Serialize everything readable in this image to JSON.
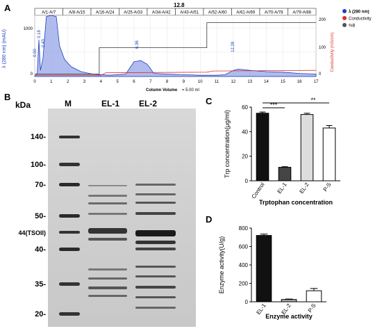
{
  "panel_letters": {
    "a": "A",
    "b": "B",
    "c": "C",
    "d": "D"
  },
  "panel_a": {
    "header_value": "12.8",
    "fractions": [
      "A/1-A/7",
      "A/8-A/15",
      "A/16-A/24",
      "A/25-A/33",
      "A/34-A/42",
      "A/43-A/51",
      "A/52-A/60",
      "A/61-A/69",
      "A/70-A/78",
      "A/79-A/86"
    ],
    "y_left_label": "λ (280 nm) (mAU)",
    "y_left_ticks": [
      "1000",
      "0"
    ],
    "y_right_label": "Conductivity (mS/cm)",
    "y_right_ticks": [
      "200",
      "100",
      "0"
    ],
    "x_ticks": [
      "0",
      "1",
      "2",
      "3",
      "4",
      "5",
      "6",
      "7",
      "8",
      "9",
      "10",
      "11",
      "12",
      "13",
      "14",
      "15",
      "16",
      "17"
    ],
    "x_label": "Column Volume",
    "x_note": "= 5.00 ml",
    "peak_labels": [
      "0.00",
      "0.18",
      "0.43",
      "6.36",
      "12.28"
    ],
    "legend": [
      {
        "name": "λ (280 nm)",
        "color": "#1f3fbf"
      },
      {
        "name": "Conductivity",
        "color": "#d93030"
      },
      {
        "name": "%B",
        "color": "#555555"
      }
    ]
  },
  "panel_b": {
    "kda_label": "kDa",
    "lane_labels": [
      "M",
      "EL-1",
      "EL-2"
    ],
    "markers": [
      "140-",
      "100-",
      "70-",
      "50-",
      "44(TSOII)",
      "40-",
      "35-",
      "20-"
    ]
  },
  "chart_data": [
    {
      "type": "bar",
      "title": "",
      "xlabel": "Trptophan concentration",
      "ylabel": "Trp concentration(μg/ml)",
      "ylim": [
        0,
        60
      ],
      "yticks": [
        "0",
        "20",
        "40",
        "60"
      ],
      "categories": [
        "Control",
        "EL-1",
        "EL-2",
        "P-S"
      ],
      "values": [
        55,
        11,
        54,
        43
      ],
      "errors": [
        1,
        0.5,
        1,
        2
      ],
      "colors": [
        "#111111",
        "#444444",
        "#dddddd",
        "#ffffff"
      ],
      "significance": [
        "***",
        "**"
      ]
    },
    {
      "type": "bar",
      "title": "",
      "xlabel": "Enzyme activity",
      "ylabel": "Enzyme activity(U/g)",
      "ylim": [
        0,
        800
      ],
      "yticks": [
        "0",
        "200",
        "400",
        "600",
        "800"
      ],
      "categories": [
        "EL-1",
        "EL-2",
        "P-S"
      ],
      "values": [
        720,
        25,
        120
      ],
      "errors": [
        15,
        5,
        25
      ],
      "colors": [
        "#111111",
        "#aaaaaa",
        "#ffffff"
      ]
    }
  ]
}
